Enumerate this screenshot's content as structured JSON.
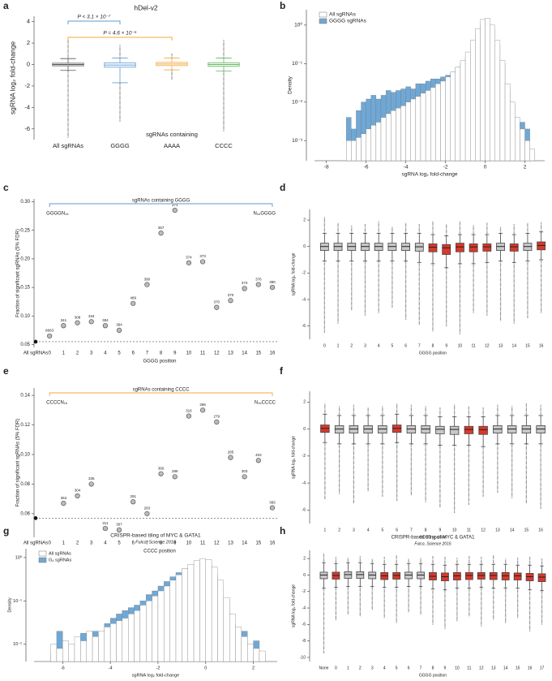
{
  "chart_data": [
    {
      "type": "box",
      "panel_label": "a",
      "title": "hDel-v2",
      "ylabel": "sgRNA log₂ fold-change",
      "group_label": "sgRNAs containing",
      "categories": [
        "All sgRNAs",
        "GGGG",
        "AAAA",
        "CCCC"
      ],
      "style": "outline",
      "colors": [
        "#555555",
        "#5b9bd5",
        "#f4a742",
        "#5cb85c"
      ],
      "min": [
        -6.8,
        -5.3,
        -1.4,
        -6.2
      ],
      "low": [
        -0.55,
        -1.7,
        -0.5,
        -0.6
      ],
      "q1": [
        -0.12,
        -0.25,
        -0.1,
        -0.15
      ],
      "median": [
        0,
        -0.05,
        0.05,
        0
      ],
      "q3": [
        0.12,
        0.15,
        0.2,
        0.15
      ],
      "high": [
        0.55,
        0.6,
        0.6,
        0.6
      ],
      "max": [
        2.3,
        1.8,
        1.0,
        2.3
      ],
      "annotations": [
        {
          "text": "P < 3.1 × 10⁻⁷",
          "color": "#5b9bd5"
        },
        {
          "text": "P = 4.6 × 10⁻⁵",
          "color": "#f4a742"
        }
      ],
      "ylim": [
        -7,
        4.5
      ],
      "yticks": [
        -6,
        -4,
        -2,
        0,
        2,
        4
      ]
    },
    {
      "type": "histogram",
      "panel_label": "b",
      "xlabel": "sgRNA log₂ fold-change",
      "ylabel": "Density",
      "log_y": true,
      "legend": "upper-left",
      "bins": [
        -7,
        -6.75,
        -6.5,
        -6.25,
        -6,
        -5.75,
        -5.5,
        -5.25,
        -5,
        -4.75,
        -4.5,
        -4.25,
        -4,
        -3.75,
        -3.5,
        -3.25,
        -3,
        -2.75,
        -2.5,
        -2.25,
        -2,
        -1.75,
        -1.5,
        -1.25,
        -1,
        -0.75,
        -0.5,
        -0.25,
        0,
        0.25,
        0.5,
        0.75,
        1,
        1.25,
        1.5,
        1.75,
        2,
        2.25,
        2.5
      ],
      "series": [
        {
          "name": "All sgRNAs",
          "color": "#ffffff",
          "values": [
            0.001,
            0.001,
            0.0012,
            0.0015,
            0.002,
            0.0025,
            0.003,
            0.004,
            0.005,
            0.006,
            0.007,
            0.008,
            0.01,
            0.012,
            0.014,
            0.017,
            0.02,
            0.024,
            0.03,
            0.035,
            0.045,
            0.06,
            0.08,
            0.12,
            0.2,
            0.4,
            0.8,
            1.4,
            1.5,
            1.0,
            0.4,
            0.12,
            0.03,
            0.01,
            0.004,
            0.002,
            0.001,
            0.0006
          ]
        },
        {
          "name": "GGGG sgRNAs",
          "color": "#6fa8d6",
          "values": [
            0.004,
            0.002,
            0.006,
            0.01,
            0.012,
            0.015,
            0.012,
            0.015,
            0.02,
            0.018,
            0.02,
            0.022,
            0.025,
            0.022,
            0.03,
            0.03,
            0.035,
            0.04,
            0.04,
            0.045,
            0.05,
            0.06,
            0.08,
            0.1,
            0.15,
            0.3,
            0.6,
            1.0,
            1.1,
            0.8,
            0.3,
            0.1,
            0.02,
            0.008,
            0.003,
            0.003,
            0.002,
            0.0005
          ]
        }
      ],
      "xlim": [
        -8.6,
        3
      ],
      "xticks": [
        -8,
        -6,
        -4,
        -2,
        0,
        2
      ],
      "ylim": [
        0.0003,
        2.5
      ],
      "yticks": [
        {
          "value": 0.001,
          "label": "10⁻³"
        },
        {
          "value": 0.01,
          "label": "10⁻²"
        },
        {
          "value": 0.1,
          "label": "10⁻¹"
        },
        {
          "value": 1,
          "label": "10⁰"
        }
      ]
    },
    {
      "type": "scatter",
      "panel_label": "c",
      "xlabel": "GGGG position",
      "ylabel": "Fraction of significant sgRNAs (5% FDR)",
      "bracket_label": "sgRNAs containing GGGG",
      "bracket_color": "#5b9bd5",
      "start_label": "GGGGN₁₆",
      "end_label": "N₁₆GGGG",
      "categories": [
        "All sgRNAs",
        "0",
        "1",
        "2",
        "3",
        "4",
        "5",
        "6",
        "7",
        "8",
        "9",
        "10",
        "11",
        "12",
        "13",
        "14",
        "15",
        "16"
      ],
      "values": [
        0.055,
        0.065,
        0.083,
        0.088,
        0.09,
        0.083,
        0.075,
        0.122,
        0.155,
        0.245,
        0.285,
        0.193,
        0.195,
        0.115,
        0.127,
        0.148,
        0.155,
        0.15
      ],
      "counts": [
        null,
        8663,
        341,
        308,
        334,
        384,
        364,
        489,
        390,
        367,
        371,
        374,
        373,
        370,
        370,
        373,
        376,
        380
      ],
      "ylim": [
        0.045,
        0.305
      ],
      "yticks": [
        0.05,
        {
          "value": 0.1,
          "label": "0.10"
        },
        0.15,
        {
          "value": 0.2,
          "label": "0.20"
        },
        0.25,
        {
          "value": 0.3,
          "label": "0.30"
        }
      ]
    },
    {
      "type": "box",
      "panel_label": "d",
      "xlabel": "GGGG position",
      "ylabel": "sgRNA log₂ fold-change",
      "style": "filled",
      "categories": [
        "0",
        "1",
        "2",
        "3",
        "4",
        "5",
        "6",
        "7",
        "8",
        "9",
        "10",
        "11",
        "12",
        "13",
        "14",
        "15",
        "16"
      ],
      "colors": [
        "#c8c8c8",
        "#c8c8c8",
        "#c8c8c8",
        "#c8c8c8",
        "#c8c8c8",
        "#c8c8c8",
        "#c8c8c8",
        "#c8c8c8",
        "#d9382c",
        "#d9382c",
        "#d9382c",
        "#d9382c",
        "#d9382c",
        "#c8c8c8",
        "#d9382c",
        "#c8c8c8",
        "#d9382c"
      ],
      "min": [
        -6.5,
        -5.8,
        -4.8,
        -5.2,
        -5,
        -4.6,
        -5.5,
        -5.9,
        -6.4,
        -6,
        -6.6,
        -5,
        -5.2,
        -5.6,
        -5.8,
        -5.4,
        -5
      ],
      "low": [
        -1.1,
        -1.1,
        -1.1,
        -1.1,
        -1.1,
        -1.1,
        -1.1,
        -1.2,
        -1.3,
        -1.6,
        -1.3,
        -1.3,
        -1.2,
        -1.1,
        -1.2,
        -1.1,
        -1
      ],
      "q1": [
        -0.3,
        -0.3,
        -0.3,
        -0.3,
        -0.3,
        -0.3,
        -0.3,
        -0.35,
        -0.4,
        -0.6,
        -0.4,
        -0.4,
        -0.35,
        -0.3,
        -0.35,
        -0.3,
        -0.25
      ],
      "median": [
        0,
        0,
        0,
        0,
        0,
        0,
        0,
        -0.02,
        -0.05,
        -0.1,
        -0.03,
        -0.03,
        -0.02,
        0,
        -0.02,
        0,
        0.08
      ],
      "q3": [
        0.25,
        0.25,
        0.25,
        0.25,
        0.25,
        0.25,
        0.25,
        0.25,
        0.2,
        0.15,
        0.25,
        0.2,
        0.2,
        0.25,
        0.2,
        0.25,
        0.35
      ],
      "high": [
        1,
        1,
        1,
        1,
        1,
        1,
        1,
        1,
        0.9,
        0.8,
        0.9,
        0.9,
        0.9,
        1,
        0.9,
        1,
        1.1
      ],
      "max": [
        2.2,
        1.8,
        1.6,
        1.7,
        1.9,
        1.5,
        1.8,
        1.7,
        1.9,
        1.7,
        1.9,
        1.6,
        1.8,
        1.5,
        1.7,
        1.8,
        1.8
      ],
      "ylim": [
        -7,
        2.8
      ],
      "yticks": [
        -6,
        -4,
        -2,
        0,
        2
      ]
    },
    {
      "type": "scatter",
      "panel_label": "e",
      "xlabel": "CCCC position",
      "ylabel": "Fraction of significant sgRNAs (5% FDR)",
      "bracket_label": "sgRNAs containing CCCC",
      "bracket_color": "#f4a742",
      "start_label": "CCCCN₁₆",
      "end_label": "N₁₆CCCC",
      "categories": [
        "All sgRNAs",
        "0",
        "1",
        "2",
        "3",
        "4",
        "5",
        "6",
        "7",
        "8",
        "9",
        "10",
        "11",
        "12",
        "13",
        "14",
        "15",
        "16"
      ],
      "values": [
        0.057,
        null,
        0.067,
        0.072,
        0.08,
        0.05,
        0.049,
        0.068,
        0.06,
        0.087,
        0.085,
        0.126,
        0.13,
        0.122,
        0.098,
        0.085,
        0.096,
        0.064
      ],
      "counts": [
        null,
        null,
        353,
        304,
        336,
        311,
        307,
        291,
        283,
        366,
        286,
        316,
        296,
        279,
        285,
        303,
        403,
        365
      ],
      "ylim": [
        0.044,
        0.145
      ],
      "yticks": [
        0.06,
        0.08,
        {
          "value": 0.1,
          "label": "0.10"
        },
        0.12,
        0.14
      ]
    },
    {
      "type": "box",
      "panel_label": "f",
      "xlabel": "CCCC position",
      "ylabel": "sgRNA log₂ fold-change",
      "style": "filled",
      "categories": [
        "1",
        "2",
        "3",
        "4",
        "5",
        "6",
        "7",
        "8",
        "9",
        "10",
        "11",
        "12",
        "13",
        "14",
        "15",
        "16"
      ],
      "colors": [
        "#d9382c",
        "#c8c8c8",
        "#c8c8c8",
        "#c8c8c8",
        "#c8c8c8",
        "#d9382c",
        "#c8c8c8",
        "#c8c8c8",
        "#c8c8c8",
        "#c8c8c8",
        "#d9382c",
        "#d9382c",
        "#c8c8c8",
        "#c8c8c8",
        "#c8c8c8",
        "#c8c8c8"
      ],
      "min": [
        -5.2,
        -4.8,
        -5.5,
        -4.6,
        -5,
        -5.3,
        -4.9,
        -5.4,
        -5.8,
        -6.2,
        -5.6,
        -5,
        -4.7,
        -5.1,
        -5.5,
        -5.9
      ],
      "low": [
        -1,
        -1.1,
        -1.1,
        -1.1,
        -1.1,
        -1,
        -1.1,
        -1.1,
        -1.2,
        -1.2,
        -1.2,
        -1.3,
        -1.1,
        -1.1,
        -1.1,
        -1.1
      ],
      "q1": [
        -0.25,
        -0.3,
        -0.3,
        -0.3,
        -0.3,
        -0.25,
        -0.3,
        -0.3,
        -0.35,
        -0.4,
        -0.35,
        -0.4,
        -0.3,
        -0.3,
        -0.3,
        -0.3
      ],
      "median": [
        0.05,
        0,
        0,
        0,
        0,
        0.05,
        0,
        0,
        -0.02,
        -0.03,
        -0.03,
        -0.05,
        0,
        0,
        0,
        0
      ],
      "q3": [
        0.3,
        0.25,
        0.25,
        0.25,
        0.25,
        0.3,
        0.25,
        0.25,
        0.2,
        0.2,
        0.2,
        0.2,
        0.25,
        0.25,
        0.25,
        0.25
      ],
      "high": [
        1.1,
        1,
        1,
        1,
        1,
        1.1,
        1,
        1,
        0.9,
        0.9,
        0.9,
        0.9,
        1,
        1,
        1,
        1
      ],
      "max": [
        1.9,
        1.7,
        1.8,
        1.6,
        1.7,
        1.9,
        1.8,
        1.7,
        1.6,
        1.8,
        1.7,
        1.6,
        1.8,
        1.7,
        1.9,
        1.8
      ],
      "ylim": [
        -7,
        2.8
      ],
      "yticks": [
        -6,
        -4,
        -2,
        0,
        2
      ]
    },
    {
      "type": "histogram",
      "panel_label": "g",
      "title": "CRISPR-based tiling of MYC & GATA1",
      "subtitle": "Fulco, Science 2016",
      "xlabel": "sgRNA log₂ fold-change",
      "ylabel": "Density",
      "log_y": true,
      "legend": "upper-left",
      "bins": [
        -6.5,
        -6.25,
        -6,
        -5.75,
        -5.5,
        -5.25,
        -5,
        -4.75,
        -4.5,
        -4.25,
        -4,
        -3.75,
        -3.5,
        -3.25,
        -3,
        -2.75,
        -2.5,
        -2.25,
        -2,
        -1.75,
        -1.5,
        -1.25,
        -1,
        -0.75,
        -0.5,
        -0.25,
        0,
        0.25,
        0.5,
        0.75,
        1,
        1.25,
        1.5,
        1.75,
        2,
        2.25,
        2.5
      ],
      "series": [
        {
          "name": "All sgRNAs",
          "color": "#ffffff",
          "values": [
            0.01,
            0.008,
            0.012,
            0.01,
            0.015,
            0.012,
            0.02,
            0.015,
            0.02,
            0.025,
            0.03,
            0.035,
            0.04,
            0.05,
            0.06,
            0.08,
            0.1,
            0.13,
            0.17,
            0.22,
            0.3,
            0.4,
            0.55,
            0.7,
            0.85,
            0.95,
            0.9,
            0.6,
            0.3,
            0.12,
            0.05,
            0.025,
            0.015,
            0.01,
            0.008,
            0.007
          ]
        },
        {
          "name": "G₄ sgRNAs",
          "color": "#6fa8d6",
          "values": [
            0.006,
            0.02,
            0.007,
            0.006,
            0.01,
            0.018,
            0.015,
            0.02,
            0.015,
            0.03,
            0.04,
            0.05,
            0.06,
            0.07,
            0.08,
            0.1,
            0.14,
            0.17,
            0.22,
            0.28,
            0.36,
            0.45,
            0.55,
            0.6,
            0.7,
            0.8,
            0.7,
            0.4,
            0.2,
            0.1,
            0.03,
            0.015,
            0.02,
            0.006,
            0.012,
            0.006
          ]
        }
      ],
      "xlim": [
        -7.2,
        3
      ],
      "xticks": [
        -6,
        -4,
        -2,
        0,
        2
      ],
      "ylim": [
        0.004,
        1.6
      ],
      "yticks": [
        {
          "value": 0.01,
          "label": "10⁻²"
        },
        {
          "value": 0.1,
          "label": "10⁻¹"
        },
        {
          "value": 1,
          "label": "10⁰"
        }
      ]
    },
    {
      "type": "box",
      "panel_label": "h",
      "title": "CRISPR-based tiling of MYC & GATA1",
      "subtitle": "Fulco, Science 2016",
      "xlabel": "GGGG position",
      "ylabel": "sgRNA log₂ fold-change",
      "style": "filled",
      "categories": [
        "None",
        "0",
        "1",
        "2",
        "3",
        "4",
        "5",
        "6",
        "7",
        "8",
        "9",
        "10",
        "11",
        "12",
        "13",
        "14",
        "15",
        "16",
        "17"
      ],
      "colors": [
        "#c8c8c8",
        "#d9382c",
        "#c8c8c8",
        "#c8c8c8",
        "#c8c8c8",
        "#d9382c",
        "#d9382c",
        "#c8c8c8",
        "#c8c8c8",
        "#d9382c",
        "#d9382c",
        "#d9382c",
        "#d9382c",
        "#d9382c",
        "#d9382c",
        "#d9382c",
        "#d9382c",
        "#d9382c",
        "#d9382c"
      ],
      "min": [
        -9.5,
        -5.5,
        -4.8,
        -5,
        -4.2,
        -5.2,
        -5.8,
        -4.5,
        -4.8,
        -6,
        -6.5,
        -5.6,
        -5,
        -6.2,
        -5.4,
        -5.8,
        -5.2,
        -6.8,
        -6
      ],
      "low": [
        -1.6,
        -1.5,
        -1.4,
        -1.4,
        -1.4,
        -1.5,
        -1.5,
        -1.4,
        -1.4,
        -1.7,
        -1.8,
        -1.6,
        -1.6,
        -1.5,
        -1.6,
        -1.6,
        -1.6,
        -1.8,
        -1.9
      ],
      "q1": [
        -0.45,
        -0.5,
        -0.4,
        -0.4,
        -0.45,
        -0.55,
        -0.5,
        -0.45,
        -0.45,
        -0.6,
        -0.7,
        -0.6,
        -0.55,
        -0.5,
        -0.55,
        -0.6,
        -0.6,
        -0.7,
        -0.8
      ],
      "median": [
        0,
        -0.05,
        0.05,
        0.05,
        0,
        -0.1,
        -0.05,
        0,
        0,
        -0.15,
        -0.2,
        -0.1,
        -0.05,
        -0.05,
        -0.05,
        -0.1,
        -0.1,
        -0.2,
        -0.25
      ],
      "q3": [
        0.35,
        0.35,
        0.4,
        0.4,
        0.35,
        0.3,
        0.3,
        0.35,
        0.35,
        0.3,
        0.25,
        0.3,
        0.3,
        0.3,
        0.3,
        0.3,
        0.25,
        0.2,
        0.15
      ],
      "high": [
        1.5,
        1.4,
        1.5,
        1.5,
        1.4,
        1.3,
        1.3,
        1.4,
        1.4,
        1.3,
        1.2,
        1.3,
        1.3,
        1.3,
        1.3,
        1.3,
        1.2,
        1.2,
        1.1
      ],
      "max": [
        2.6,
        2.2,
        2.1,
        2.3,
        2,
        2.2,
        2.4,
        2,
        2.1,
        2.3,
        2.2,
        2.1,
        2.3,
        2.2,
        2.4,
        2,
        2.1,
        2.2,
        2
      ],
      "ylim": [
        -10.5,
        3
      ],
      "yticks": [
        -10,
        -8,
        -6,
        -4,
        -2,
        0,
        2
      ]
    }
  ]
}
